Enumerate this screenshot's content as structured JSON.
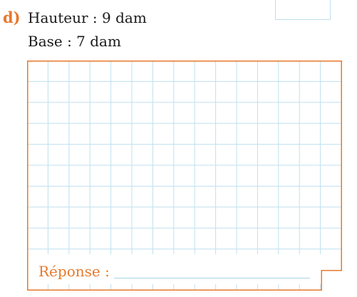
{
  "exercise": {
    "letter": "d)",
    "height_label": "Hauteur : 9 dam",
    "base_label": "Base : 7 dam"
  },
  "answer": {
    "label": "Réponse :"
  },
  "colors": {
    "accent": "#e8792b",
    "grid": "#bfe0ef",
    "text": "#1a1a1a"
  }
}
